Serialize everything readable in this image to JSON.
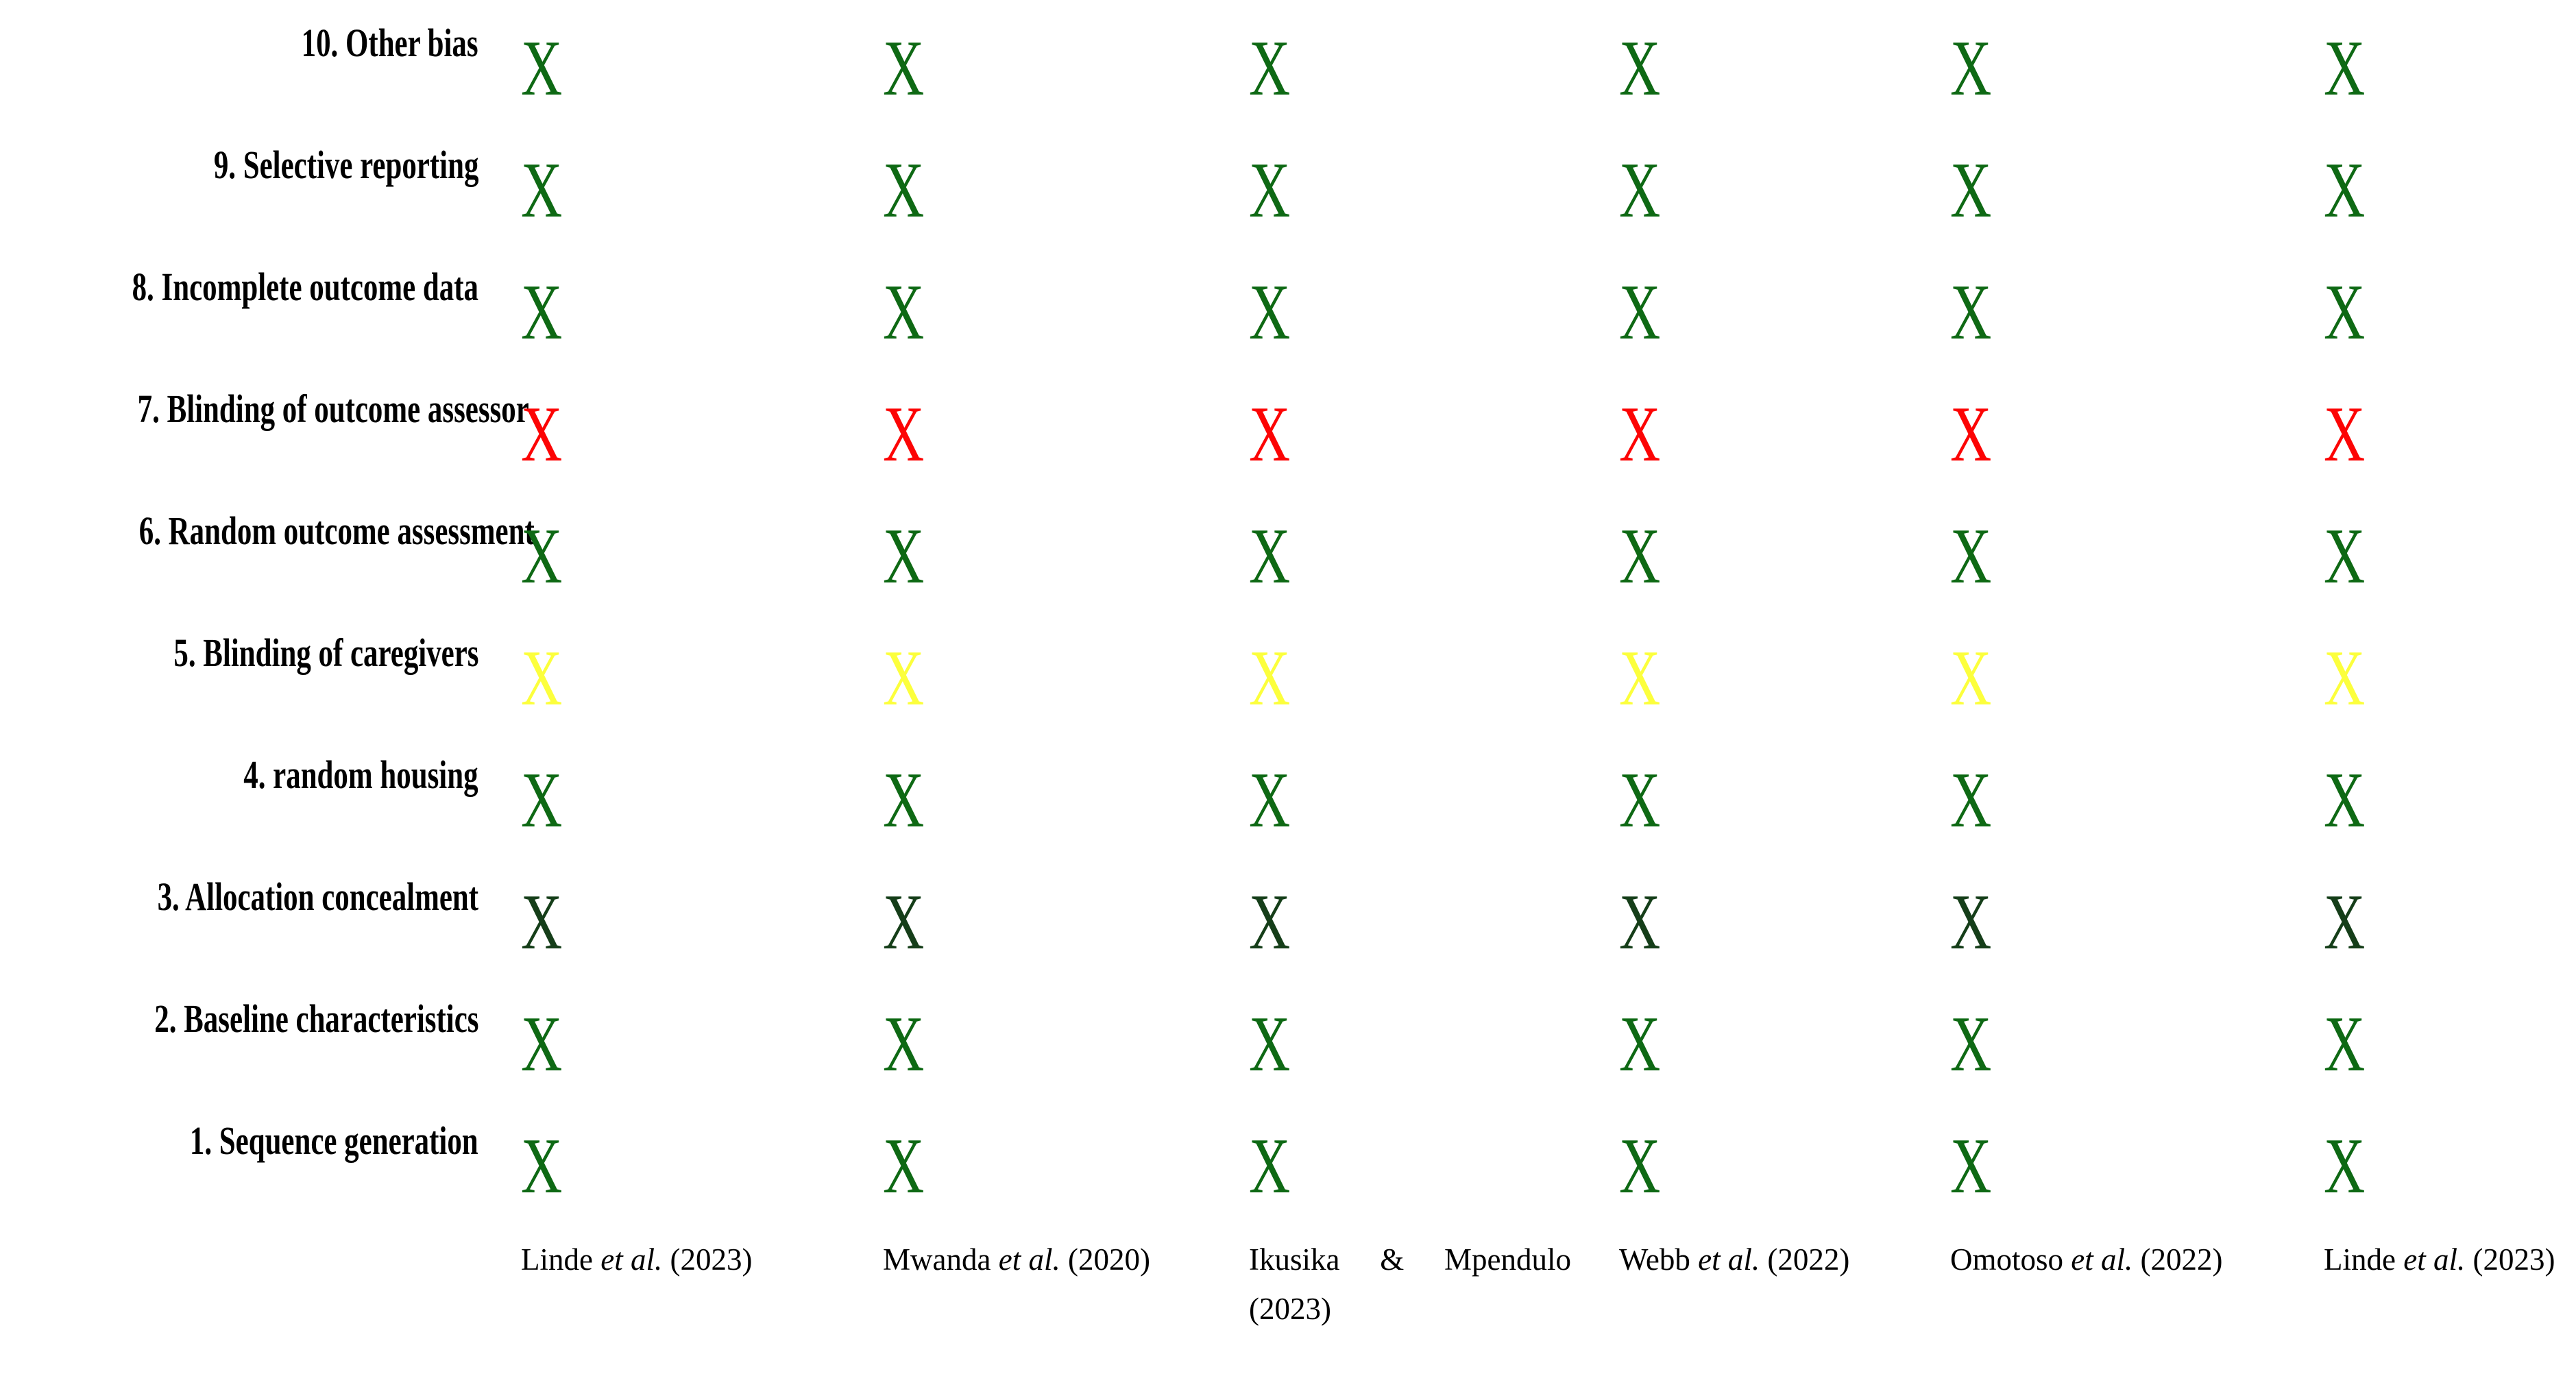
{
  "mark": "X",
  "colors": {
    "green": "#0e6914",
    "dark_green": "#153e19",
    "red": "#fc0404",
    "yellow": "#fcff3c",
    "label_black": "#000000",
    "background": "#ffffff"
  },
  "rows": [
    {
      "label": "10. Other bias",
      "color": "#0e6914"
    },
    {
      "label": "9. Selective reporting",
      "color": "#0e6914"
    },
    {
      "label": "8. Incomplete outcome data",
      "color": "#0e6914"
    },
    {
      "label": "7. Blinding of outcome assessor",
      "color": "#fc0404"
    },
    {
      "label": "6. Random outcome assessment",
      "color": "#0e6914"
    },
    {
      "label": "5. Blinding of caregivers",
      "color": "#fcff3c"
    },
    {
      "label": "4. random housing",
      "color": "#0e6914"
    },
    {
      "label": "3. Allocation concealment",
      "color": "#153e19"
    },
    {
      "label": "2. Baseline characteristics",
      "color": "#0e6914"
    },
    {
      "label": "1. Sequence generation",
      "color": "#0e6914"
    }
  ],
  "studies": [
    {
      "pre": "Linde ",
      "italic": "et al.",
      "post": " (2023)"
    },
    {
      "pre": "Mwanda ",
      "italic": "et al.",
      "post": " (2020)"
    },
    {
      "pre": "Ikusika & Mpendulo",
      "italic": "",
      "post": " (2023)"
    },
    {
      "pre": "Webb ",
      "italic": "et al.",
      "post": " (2022)"
    },
    {
      "pre": "Omotoso ",
      "italic": "et al.",
      "post": " (2022)"
    },
    {
      "pre": "Linde ",
      "italic": "et al.",
      "post": " (2023)"
    }
  ],
  "chart_data": {
    "type": "heatmap",
    "title": "",
    "marker_glyph": "X",
    "x_categories": [
      "Linde et al. (2023)",
      "Mwanda et al. (2020)",
      "Ikusika & Mpendulo (2023)",
      "Webb et al. (2022)",
      "Omotoso et al. (2022)",
      "Linde et al. (2023)"
    ],
    "y_categories_top_to_bottom": [
      "10. Other bias",
      "9. Selective reporting",
      "8. Incomplete outcome data",
      "7. Blinding of outcome assessor",
      "6. Random outcome assessment",
      "5. Blinding of caregivers",
      "4. random housing",
      "3. Allocation concealment",
      "2. Baseline characteristics",
      "1. Sequence generation"
    ],
    "values_rows_top_to_bottom": [
      [
        "green",
        "green",
        "green",
        "green",
        "green",
        "green"
      ],
      [
        "green",
        "green",
        "green",
        "green",
        "green",
        "green"
      ],
      [
        "green",
        "green",
        "green",
        "green",
        "green",
        "green"
      ],
      [
        "red",
        "red",
        "red",
        "red",
        "red",
        "red"
      ],
      [
        "green",
        "green",
        "green",
        "green",
        "green",
        "green"
      ],
      [
        "yellow",
        "yellow",
        "yellow",
        "yellow",
        "yellow",
        "yellow"
      ],
      [
        "green",
        "green",
        "green",
        "green",
        "green",
        "green"
      ],
      [
        "dark_green",
        "dark_green",
        "dark_green",
        "dark_green",
        "dark_green",
        "dark_green"
      ],
      [
        "green",
        "green",
        "green",
        "green",
        "green",
        "green"
      ],
      [
        "green",
        "green",
        "green",
        "green",
        "green",
        "green"
      ]
    ],
    "value_colors": {
      "green": "#0e6914",
      "dark_green": "#153e19",
      "red": "#fc0404",
      "yellow": "#fcff3c"
    },
    "grid": false,
    "legend_position": "none"
  }
}
